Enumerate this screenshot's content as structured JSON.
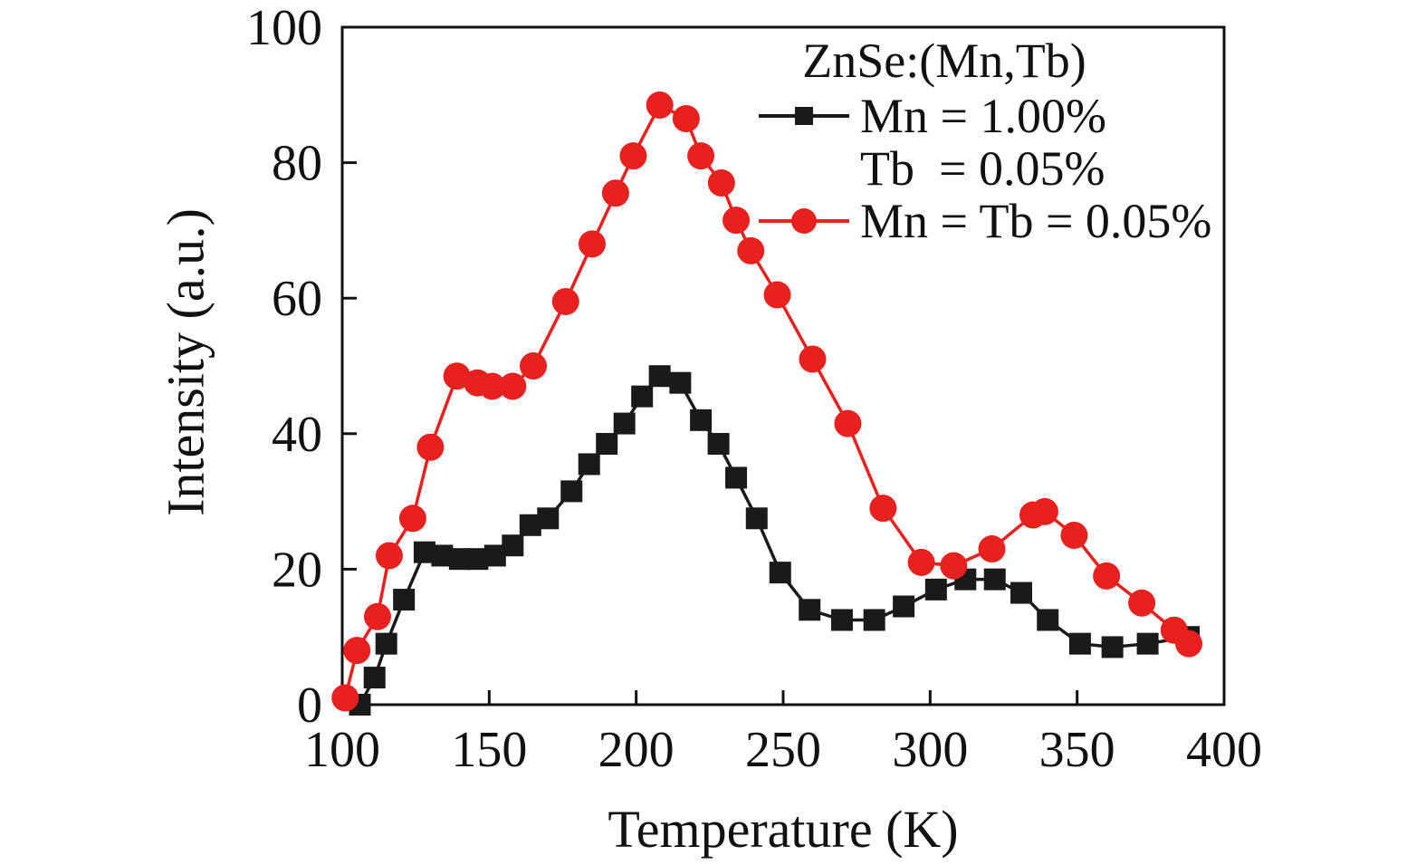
{
  "legend": {
    "title": "ZnSe:(Mn,Tb)",
    "entries": [
      {
        "line1": "Mn = 1.00%",
        "line2": "Tb  = 0.05%",
        "marker": "square",
        "color": "#1a1a1a"
      },
      {
        "line1": "Mn = Tb = 0.05%",
        "marker": "circle",
        "color": "#e8211f"
      }
    ]
  },
  "chart_data": {
    "type": "line",
    "title": "ZnSe:(Mn,Tb)",
    "xlabel": "Temperature (K)",
    "ylabel": "Intensity (a.u.)",
    "xlim": [
      100,
      400
    ],
    "ylim": [
      0,
      100
    ],
    "xticks": [
      100,
      150,
      200,
      250,
      300,
      350,
      400
    ],
    "yticks": [
      0,
      20,
      40,
      60,
      80,
      100
    ],
    "grid": false,
    "legend_position": "top-right",
    "axis_color": "#111111",
    "series": [
      {
        "name": "Mn = 1.00%, Tb = 0.05%",
        "marker": "square",
        "color": "#1a1a1a",
        "points": [
          [
            106,
            0
          ],
          [
            111,
            4
          ],
          [
            115,
            9
          ],
          [
            121,
            15.5
          ],
          [
            128,
            22.5
          ],
          [
            134,
            22
          ],
          [
            140,
            21.5
          ],
          [
            146,
            21.5
          ],
          [
            152,
            22
          ],
          [
            158,
            23.5
          ],
          [
            164,
            26.5
          ],
          [
            170,
            27.5
          ],
          [
            178,
            31.5
          ],
          [
            184,
            35.5
          ],
          [
            190,
            38.5
          ],
          [
            196,
            41.5
          ],
          [
            202,
            45.5
          ],
          [
            208,
            48.5
          ],
          [
            215,
            47.5
          ],
          [
            222,
            42
          ],
          [
            228,
            38.5
          ],
          [
            234,
            33.5
          ],
          [
            241,
            27.5
          ],
          [
            249,
            19.5
          ],
          [
            259,
            14
          ],
          [
            270,
            12.5
          ],
          [
            281,
            12.5
          ],
          [
            291,
            14.5
          ],
          [
            302,
            17
          ],
          [
            312,
            18.5
          ],
          [
            322,
            18.5
          ],
          [
            331,
            16.5
          ],
          [
            340,
            12.5
          ],
          [
            351,
            9
          ],
          [
            362,
            8.5
          ],
          [
            374,
            9
          ],
          [
            388,
            10
          ]
        ]
      },
      {
        "name": "Mn = Tb = 0.05%",
        "marker": "circle",
        "color": "#e8211f",
        "points": [
          [
            101,
            1
          ],
          [
            105,
            8
          ],
          [
            112,
            13
          ],
          [
            116,
            22
          ],
          [
            124,
            27.5
          ],
          [
            130,
            38
          ],
          [
            139,
            48.5
          ],
          [
            146,
            47.5
          ],
          [
            151,
            47
          ],
          [
            158,
            47
          ],
          [
            165,
            50
          ],
          [
            176,
            59.5
          ],
          [
            185,
            68
          ],
          [
            193,
            75.5
          ],
          [
            199,
            81
          ],
          [
            208,
            88.5
          ],
          [
            217,
            86.5
          ],
          [
            222,
            81
          ],
          [
            229,
            77
          ],
          [
            234,
            71.5
          ],
          [
            239,
            67
          ],
          [
            248,
            60.5
          ],
          [
            260,
            51
          ],
          [
            272,
            41.5
          ],
          [
            284,
            29
          ],
          [
            297,
            21
          ],
          [
            308,
            20.5
          ],
          [
            321,
            23
          ],
          [
            335,
            28
          ],
          [
            339,
            28.5
          ],
          [
            349,
            25
          ],
          [
            360,
            19
          ],
          [
            372,
            15
          ],
          [
            383,
            11
          ],
          [
            388,
            9
          ]
        ]
      }
    ]
  }
}
